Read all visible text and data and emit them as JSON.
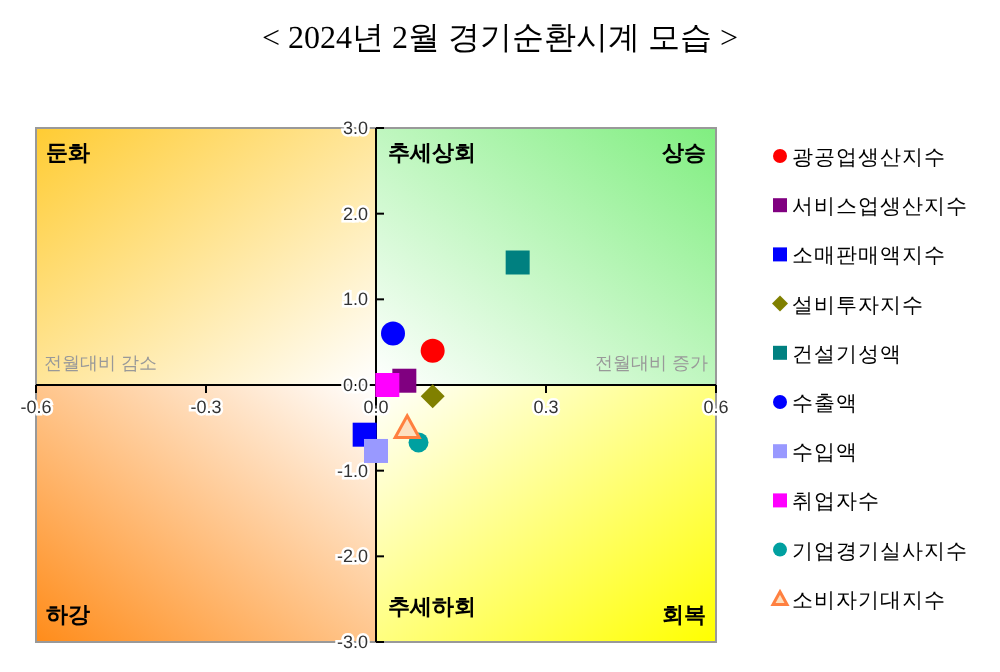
{
  "chart_data": {
    "type": "scatter",
    "title": "< 2024년 2월 경기순환시계 모습 >",
    "xlim": [
      -0.6,
      0.6
    ],
    "ylim": [
      -3,
      3
    ],
    "xticks": [
      {
        "value": -0.6,
        "label": "-0.6"
      },
      {
        "value": -0.3,
        "label": "-0.3"
      },
      {
        "value": 0,
        "label": "0.0"
      },
      {
        "value": 0.3,
        "label": "0.3"
      },
      {
        "value": 0.6,
        "label": "0.6"
      }
    ],
    "yticks": [
      {
        "value": 3,
        "label": "3.0"
      },
      {
        "value": 2,
        "label": "2.0"
      },
      {
        "value": 1,
        "label": "1.0"
      },
      {
        "value": 0,
        "label": "0.0"
      },
      {
        "value": -1,
        "label": "-1.0"
      },
      {
        "value": -2,
        "label": "-2.0"
      },
      {
        "value": -3,
        "label": "-3.0"
      }
    ],
    "grid": false,
    "legend": "right",
    "annotations": [
      "둔화",
      "추세상회",
      "상승",
      "전월대비 감소",
      "전월대비 증가",
      "하강",
      "추세하회",
      "회복"
    ],
    "series": [
      {
        "name": "광공업생산지수",
        "color": "#ff0000",
        "marker": "circle",
        "x": [
          0.1
        ],
        "values": [
          0.4
        ]
      },
      {
        "name": "서비스업생산지수",
        "color": "#800080",
        "marker": "square",
        "x": [
          0.05
        ],
        "values": [
          0.05
        ]
      },
      {
        "name": "소매판매액지수",
        "color": "#0000ff",
        "marker": "square",
        "x": [
          -0.02
        ],
        "values": [
          -0.58
        ]
      },
      {
        "name": "설비투자지수",
        "color": "#808000",
        "marker": "diamond",
        "x": [
          0.1
        ],
        "values": [
          -0.13
        ]
      },
      {
        "name": "건설기성액",
        "color": "#008080",
        "marker": "square",
        "x": [
          0.25
        ],
        "values": [
          1.43
        ]
      },
      {
        "name": "수출액",
        "color": "#0000ff",
        "marker": "circle",
        "x": [
          0.03
        ],
        "values": [
          0.6
        ]
      },
      {
        "name": "수입액",
        "color": "#9999ff",
        "marker": "square",
        "x": [
          0.0
        ],
        "values": [
          -0.77
        ]
      },
      {
        "name": "취업자수",
        "color": "#ff00ff",
        "marker": "square",
        "x": [
          0.02
        ],
        "values": [
          0.0
        ]
      },
      {
        "name": "기업경기실사지수",
        "color": "#00a0a0",
        "marker": "circle",
        "x": [
          0.075
        ],
        "values": [
          -0.67
        ]
      },
      {
        "name": "소비자기대지수",
        "color": "#ff8040",
        "marker": "triangle",
        "x": [
          0.055
        ],
        "values": [
          -0.5
        ]
      }
    ]
  }
}
